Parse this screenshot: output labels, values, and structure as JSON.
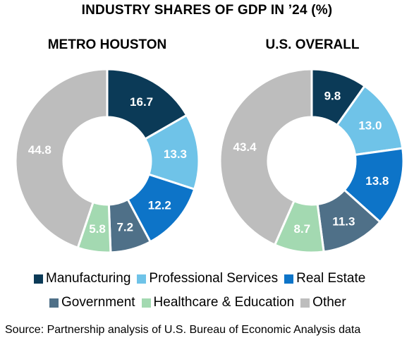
{
  "title": "INDUSTRY SHARES OF GDP IN ’24 (%)",
  "source": "Source: Partnership analysis of U.S. Bureau of Economic Analysis data",
  "colors": {
    "Manufacturing": "#0b3a57",
    "Professional Services": "#6fc3e8",
    "Real Estate": "#0d74c8",
    "Government": "#4f7088",
    "Healthcare & Education": "#a3d9b1",
    "Other": "#bdbdbd"
  },
  "chart_data": [
    {
      "type": "pie",
      "title": "METRO HOUSTON",
      "categories": [
        "Manufacturing",
        "Professional Services",
        "Real Estate",
        "Government",
        "Healthcare & Education",
        "Other"
      ],
      "values": [
        16.7,
        13.3,
        12.2,
        7.2,
        5.8,
        44.8
      ],
      "labels": [
        "16.7",
        "13.3",
        "12.2",
        "7.2",
        "5.8",
        "44.8"
      ]
    },
    {
      "type": "pie",
      "title": "U.S. OVERALL",
      "categories": [
        "Manufacturing",
        "Professional Services",
        "Real Estate",
        "Government",
        "Healthcare & Education",
        "Other"
      ],
      "values": [
        9.8,
        13.0,
        13.8,
        11.3,
        8.7,
        43.4
      ],
      "labels": [
        "9.8",
        "13.0",
        "13.8",
        "11.3",
        "8.7",
        "43.4"
      ]
    }
  ],
  "legend": {
    "row1": [
      "Manufacturing",
      "Professional Services",
      "Real Estate"
    ],
    "row2": [
      "Government",
      "Healthcare & Education",
      "Other"
    ]
  }
}
